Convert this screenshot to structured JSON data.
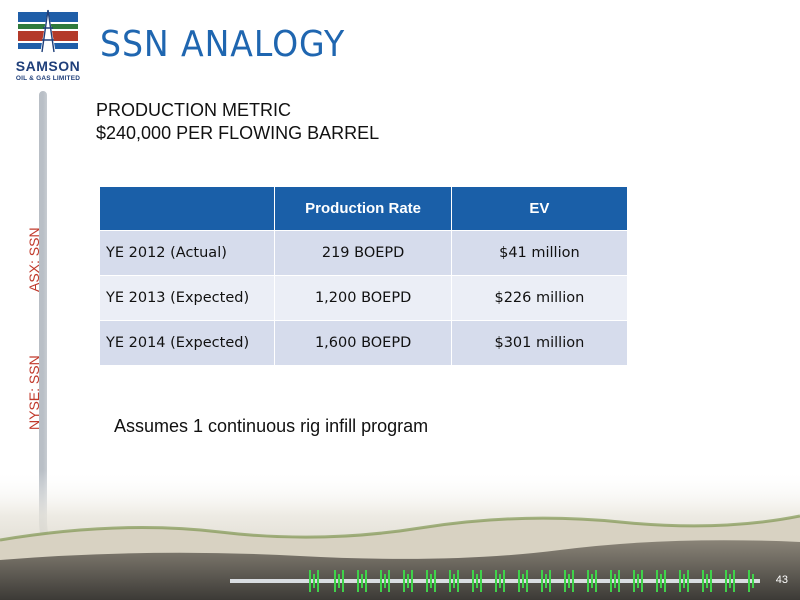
{
  "logo": {
    "name": "SAMSON",
    "subtitle": "OIL & GAS LIMITED"
  },
  "title": "SSN ANALOGY",
  "subheading": {
    "line1": "PRODUCTION METRIC",
    "line2": "$240,000 PER FLOWING BARREL"
  },
  "tickers": {
    "asx": "ASX: SSN",
    "nyse": "NYSE: SSN"
  },
  "table": {
    "headers": [
      "",
      "Production Rate",
      "EV"
    ],
    "rows": [
      [
        "YE 2012 (Actual)",
        "219 BOEPD",
        "$41 million"
      ],
      [
        "YE 2013 (Expected)",
        "1,200 BOEPD",
        "$226 million"
      ],
      [
        "YE 2014 (Expected)",
        "1,600 BOEPD",
        "$301 million"
      ]
    ]
  },
  "note": "Assumes 1 continuous rig infill program",
  "page_number": "43",
  "colors": {
    "title": "#1f66b0",
    "header_bg": "#1a5fa8",
    "row_dark": "#d6dcec",
    "row_light": "#ebeef6",
    "ticker": "#c0392b"
  }
}
